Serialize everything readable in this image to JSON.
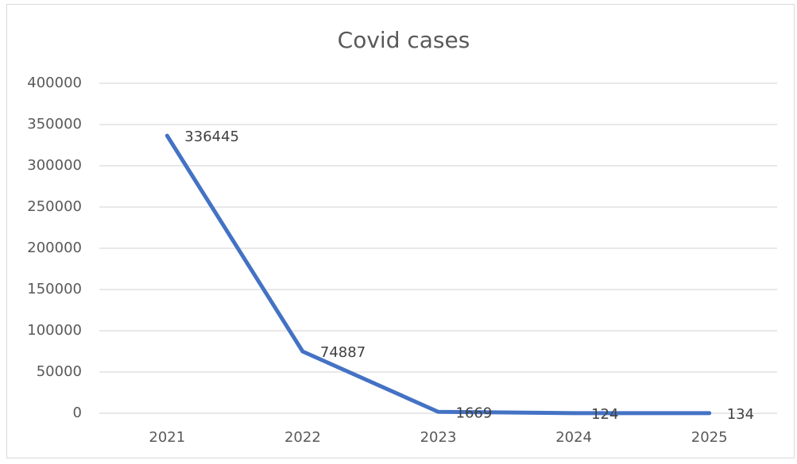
{
  "chart_data": {
    "type": "line",
    "title": "Covid cases",
    "categories": [
      "2021",
      "2022",
      "2023",
      "2024",
      "2025"
    ],
    "values": [
      336445,
      74887,
      1669,
      124,
      134
    ],
    "color": "#4472c4",
    "ylim": [
      0,
      400000
    ],
    "yticks": [
      0,
      50000,
      100000,
      150000,
      200000,
      250000,
      300000,
      350000,
      400000
    ],
    "grid": true
  }
}
